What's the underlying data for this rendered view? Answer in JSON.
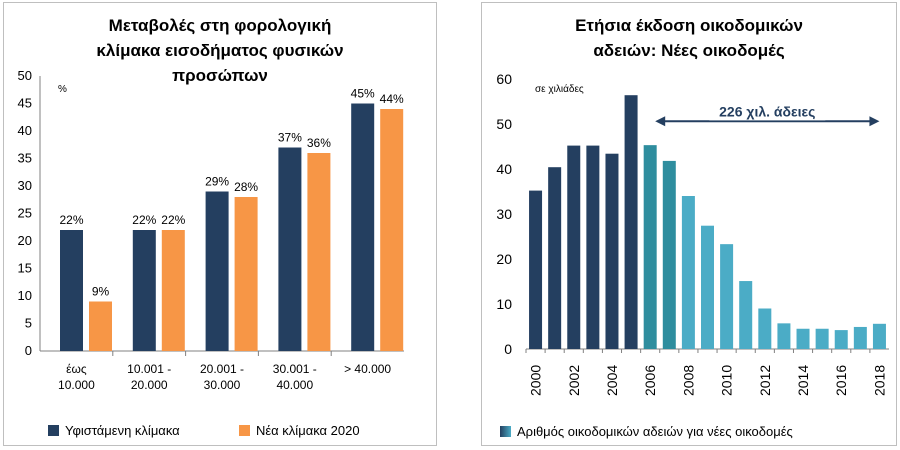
{
  "chart_data": [
    {
      "type": "bar",
      "title_lines": [
        "Μεταβολές στη φορολογική",
        "κλίμακα εισοδήματος φυσικών",
        "προσώπων"
      ],
      "ylabel": "%",
      "ylim": [
        0,
        50
      ],
      "yticks": [
        0,
        5,
        10,
        15,
        20,
        25,
        30,
        35,
        40,
        45,
        50
      ],
      "categories": [
        [
          "έως",
          "10.000"
        ],
        [
          "10.001 -",
          "20.000"
        ],
        [
          "20.001 -",
          "30.000"
        ],
        [
          "30.001 -",
          "40.000"
        ],
        [
          "> 40.000"
        ]
      ],
      "series": [
        {
          "name": "Υφιστάμενη κλίμακα",
          "color": "#243f60",
          "values": [
            22,
            22,
            29,
            37,
            45
          ],
          "labels": [
            "22%",
            "22%",
            "29%",
            "37%",
            "45%"
          ]
        },
        {
          "name": "Νέα κλίμακα 2020",
          "color": "#f79646",
          "values": [
            9,
            22,
            28,
            36,
            44
          ],
          "labels": [
            "9%",
            "22%",
            "28%",
            "36%",
            "44%"
          ]
        }
      ]
    },
    {
      "type": "bar",
      "title_lines": [
        "Ετήσια έκδοση οικοδομικών",
        "αδειών: Νέες οικοδομές"
      ],
      "ylabel": "σε χιλιάδες",
      "ylim": [
        0,
        60
      ],
      "yticks": [
        0,
        10,
        20,
        30,
        40,
        50,
        60
      ],
      "x": [
        2000,
        2001,
        2002,
        2003,
        2004,
        2005,
        2006,
        2007,
        2008,
        2009,
        2010,
        2011,
        2012,
        2013,
        2014,
        2015,
        2016,
        2017,
        2018
      ],
      "xtick_labels": [
        "2000",
        "2002",
        "2004",
        "2006",
        "2008",
        "2010",
        "2012",
        "2014",
        "2016",
        "2018"
      ],
      "values": [
        35.2,
        40.4,
        45.2,
        45.2,
        43.4,
        56.4,
        45.3,
        41.8,
        34.0,
        27.4,
        23.3,
        15.1,
        9.0,
        5.7,
        4.5,
        4.5,
        4.2,
        4.9,
        5.6
      ],
      "colors": {
        "dark": "#243f60",
        "teal": "#2e8d9e",
        "light": "#4bacc6"
      },
      "annotation": {
        "text": "226 χιλ. άδειες",
        "from_x": 2006,
        "to_x": 2018,
        "y": 50.6
      },
      "legend": "Αριθμός οικοδομικών αδειών για νέες οικοδομές"
    }
  ]
}
